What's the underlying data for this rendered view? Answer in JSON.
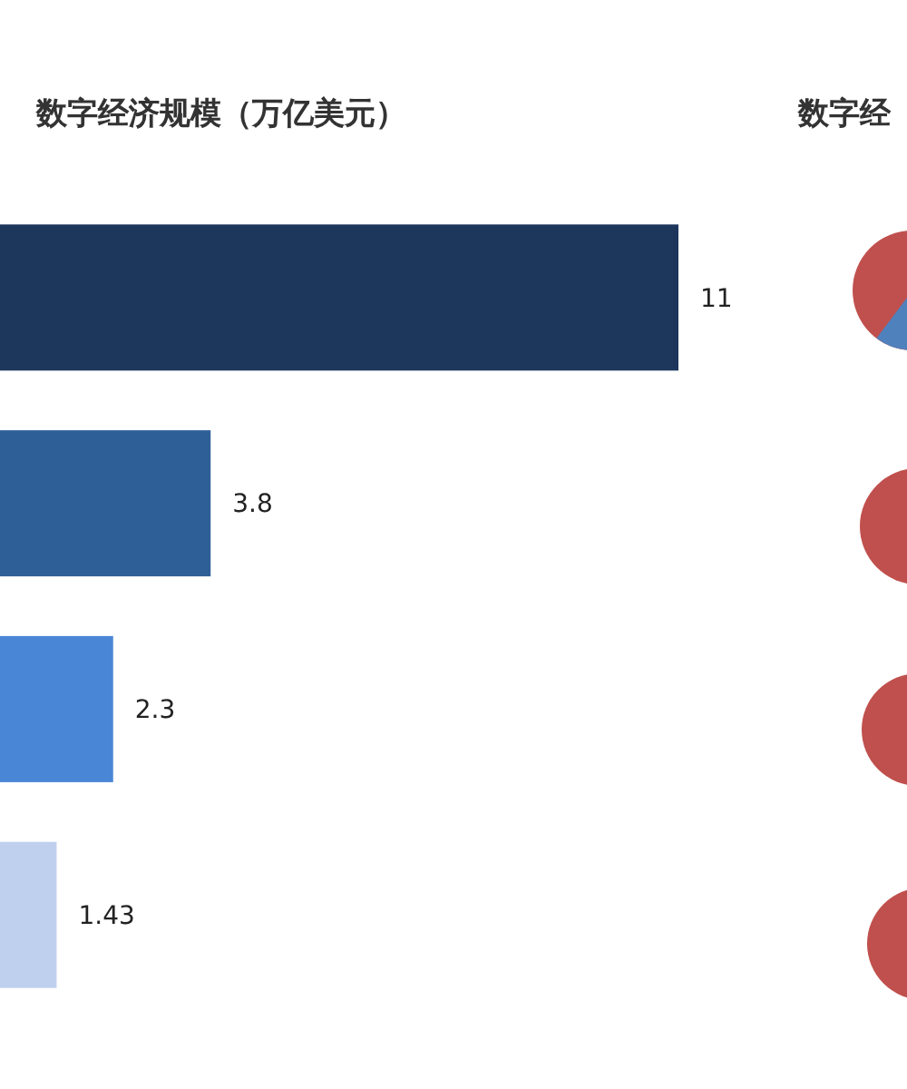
{
  "chart_data": {
    "type": "bar",
    "orientation": "horizontal",
    "title": "数字经济规模（万亿美元）",
    "categories": [
      null,
      null,
      null,
      null
    ],
    "values": [
      11,
      3.8,
      2.3,
      1.43
    ],
    "colors": [
      "#1c365c",
      "#2f5f97",
      "#4a86d6",
      "#bfd0ee"
    ],
    "data_labels": true,
    "annotations": [
      "数字经"
    ]
  }
}
